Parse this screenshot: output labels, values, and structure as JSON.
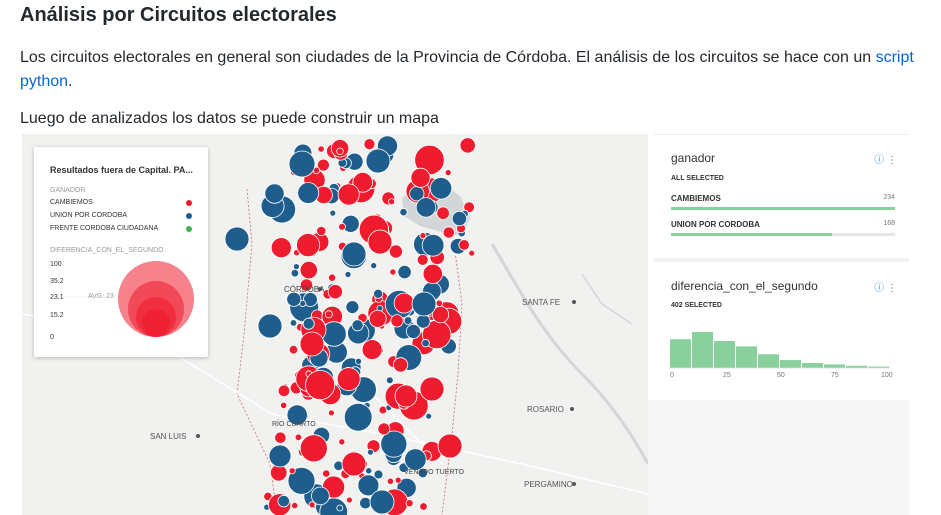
{
  "page": {
    "heading": "Análisis por Circuitos electorales",
    "intro_text": "Los circuitos electorales en general son ciudades de la Provincia de Córdoba. El análisis de los circuitos se hace con un ",
    "intro_link": "script python",
    "intro_end": ".",
    "map_intro": "Luego de analizados los datos se puede construir un mapa"
  },
  "map": {
    "city_labels": [
      "CÓRDOBA",
      "SANTA FE",
      "ROSARIO",
      "RÍO CUARTO",
      "SAN LUIS",
      "VENADO TUERTO",
      "PERGAMINO"
    ],
    "colors": {
      "cambiemos": "#ee1c2e",
      "union": "#1f5e8c",
      "frente": "#3cb54a",
      "land": "#f1f1ef",
      "water": "#d2d6d9"
    }
  },
  "legend": {
    "title": "Resultados fuera de Capital. PA...",
    "group_label": "GANADOR",
    "items": [
      {
        "label": "CAMBIEMOS",
        "color": "#ee1c2e"
      },
      {
        "label": "UNION POR CORDOBA",
        "color": "#1f5e8c"
      },
      {
        "label": "FRENTE CORDOBA CIUDADANA",
        "color": "#3cb54a"
      }
    ],
    "size_label": "DIFERENCIA_CON_EL_SEGUNDO",
    "size_ticks": [
      "100",
      "35.2",
      "23.1",
      "15.2",
      "0"
    ],
    "avg_label": "AVG: 23"
  },
  "widgets": {
    "ganador": {
      "title": "ganador",
      "selected": "ALL SELECTED",
      "rows": [
        {
          "label": "CAMBIEMOS",
          "count": "234",
          "fraction": 1.0
        },
        {
          "label": "UNION POR CORDOBA",
          "count": "168",
          "fraction": 0.72
        }
      ]
    },
    "diferencia": {
      "title": "diferencia_con_el_segundo",
      "selected": "402 SELECTED",
      "axis": [
        "0",
        "25",
        "50",
        "75",
        "100"
      ],
      "histogram": [
        0.8,
        1.0,
        0.75,
        0.6,
        0.38,
        0.22,
        0.14,
        0.1,
        0.06,
        0.04
      ]
    },
    "icons": [
      "info-icon",
      "more-icon"
    ]
  }
}
